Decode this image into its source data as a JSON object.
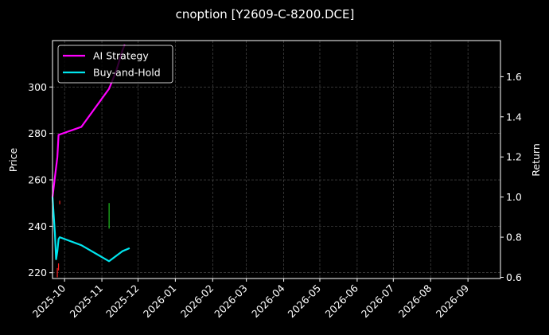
{
  "chart_data": {
    "type": "line",
    "title": "cnoption [Y2609-C-8200.DCE]",
    "ylabel_left": "Price",
    "ylabel_right": "Return",
    "x_axis_type": "date",
    "xlim": [
      "2025-09-21",
      "2026-09-28"
    ],
    "x_ticks": [
      "2025-10-01",
      "2025-11-01",
      "2025-12-01",
      "2026-01-01",
      "2026-02-01",
      "2026-03-01",
      "2026-04-01",
      "2026-05-01",
      "2026-06-01",
      "2026-07-01",
      "2026-08-01",
      "2026-09-01"
    ],
    "x_tick_labels": [
      "2025-10",
      "2025-11",
      "2025-12",
      "2026-01",
      "2026-02",
      "2026-03",
      "2026-04",
      "2026-05",
      "2026-06",
      "2026-07",
      "2026-08",
      "2026-09"
    ],
    "ylim_left": [
      217.5,
      320
    ],
    "y_ticks_left": [
      220,
      240,
      260,
      280,
      300
    ],
    "ylim_right": [
      0.594,
      1.78
    ],
    "y_ticks_right": [
      0.6,
      0.8,
      1.0,
      1.2,
      1.4,
      1.6
    ],
    "y_tick_labels_right": [
      "0.6",
      "0.8",
      "1.0",
      "1.2",
      "1.4",
      "1.6"
    ],
    "grid": true,
    "legend_position": "top-left",
    "series": [
      {
        "name": "AI Strategy",
        "axis": "right",
        "color": "#ff00ff",
        "points": [
          [
            "2025-09-21",
            1.0
          ],
          [
            "2025-09-25",
            1.2
          ],
          [
            "2025-09-26",
            1.31
          ],
          [
            "2025-10-15",
            1.35
          ],
          [
            "2025-11-07",
            1.54
          ],
          [
            "2025-11-13",
            1.63
          ],
          [
            "2025-11-18",
            1.73
          ],
          [
            "2025-11-20",
            1.76
          ]
        ]
      },
      {
        "name": "Buy-and-Hold",
        "axis": "right",
        "color": "#00e5ee",
        "points": [
          [
            "2025-09-21",
            1.0
          ],
          [
            "2025-09-23",
            0.82
          ],
          [
            "2025-09-24",
            0.69
          ],
          [
            "2025-09-25",
            0.73
          ],
          [
            "2025-09-26",
            0.79
          ],
          [
            "2025-09-27",
            0.8
          ],
          [
            "2025-10-15",
            0.76
          ],
          [
            "2025-11-07",
            0.68
          ],
          [
            "2025-11-18",
            0.73
          ],
          [
            "2025-11-24",
            0.745
          ]
        ]
      }
    ],
    "candles": [
      {
        "date": "2025-09-25",
        "low": 218,
        "high": 222,
        "color": "#ff2020"
      },
      {
        "date": "2025-09-26",
        "low": 221,
        "high": 224,
        "color": "#ff2020"
      },
      {
        "date": "2025-09-27",
        "low": 249.5,
        "high": 251,
        "color": "#ff2020"
      },
      {
        "date": "2025-11-07",
        "low": 239,
        "high": 250,
        "color": "#20c020"
      }
    ],
    "colors": {
      "background": "#000000",
      "grid": "#555555",
      "axes": "#ffffff"
    }
  }
}
